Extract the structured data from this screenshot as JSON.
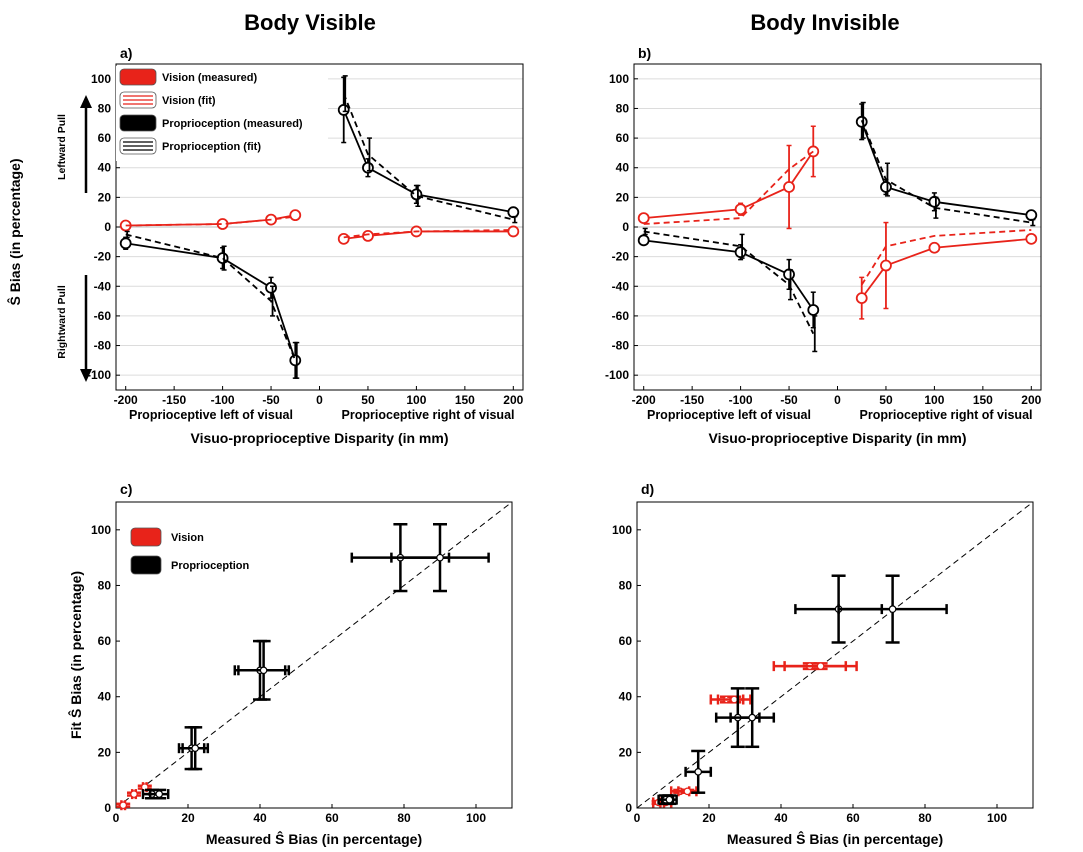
{
  "figure": {
    "title_left": "Body Visible",
    "title_right": "Body Invisible",
    "panel_labels": [
      "a)",
      "b)",
      "c)",
      "d)"
    ],
    "ylabel_top": "Ŝ Bias (in percentage)",
    "xlabel_top": "Visuo-proprioceptive Disparity (in mm)",
    "left_sublabel": "Proprioceptive left of visual",
    "right_sublabel": "Proprioceptive right of visual",
    "leftward_pull": "Leftward Pull",
    "rightward_pull": "Rightward Pull",
    "xlabel_bottom": "Measured Ŝ Bias (in percentage)",
    "ylabel_bottom": "Fit Ŝ Bias (in percentage)",
    "legend_top": [
      "Vision (measured)",
      "Vision (fit)",
      "Proprioception (measured)",
      "Proprioception (fit)"
    ],
    "legend_bottom": [
      "Vision",
      "Proprioception"
    ]
  },
  "colors": {
    "vision": "#e8231a",
    "proprioception": "#000000",
    "grid": "#dcdcdc"
  },
  "chart_data": [
    {
      "type": "line",
      "panel": "a)",
      "xlim": [
        -210,
        210
      ],
      "ylim": [
        -110,
        110
      ],
      "xticks": [
        -200,
        -150,
        -100,
        -50,
        0,
        50,
        100,
        150,
        200
      ],
      "yticks": [
        -100,
        -80,
        -60,
        -40,
        -20,
        0,
        20,
        40,
        60,
        80,
        100
      ],
      "grid": "horizontal",
      "legend_position": "top-left",
      "series": [
        {
          "name": "Vision (measured)",
          "color": "vision",
          "style": "solid",
          "marker": true,
          "segments": [
            {
              "x": [
                -200,
                -100,
                -50,
                -25
              ],
              "y": [
                1,
                2,
                5,
                8
              ],
              "err": [
                2,
                2,
                2,
                3
              ]
            },
            {
              "x": [
                25,
                50,
                100,
                200
              ],
              "y": [
                -8,
                -6,
                -3,
                -3
              ],
              "err": [
                3,
                2,
                2,
                2
              ]
            }
          ]
        },
        {
          "name": "Vision (fit)",
          "color": "vision",
          "style": "dashed",
          "marker": false,
          "segments": [
            {
              "x": [
                -200,
                -100,
                -50,
                -25
              ],
              "y": [
                1,
                2,
                5,
                7
              ]
            },
            {
              "x": [
                25,
                50,
                100,
                200
              ],
              "y": [
                -7,
                -5,
                -3,
                -2
              ]
            }
          ]
        },
        {
          "name": "Proprioception (measured)",
          "color": "proprioception",
          "style": "solid",
          "marker": true,
          "segments": [
            {
              "x": [
                -200,
                -100,
                -50,
                -25
              ],
              "y": [
                -11,
                -21,
                -41,
                -90
              ],
              "err": [
                4,
                7,
                7,
                12
              ]
            },
            {
              "x": [
                25,
                50,
                100,
                200
              ],
              "y": [
                79,
                40,
                22,
                10
              ],
              "err": [
                22,
                6,
                6,
                2
              ]
            }
          ]
        },
        {
          "name": "Proprioception (fit)",
          "color": "proprioception",
          "style": "dashed",
          "marker": false,
          "segments": [
            {
              "x": [
                -200,
                -100,
                -50,
                -25
              ],
              "y": [
                -5,
                -21,
                -50,
                -90
              ],
              "err": [
                2,
                8,
                10,
                12
              ]
            },
            {
              "x": [
                25,
                50,
                100,
                200
              ],
              "y": [
                90,
                49,
                21,
                5
              ],
              "err": [
                12,
                11,
                7,
                2
              ]
            }
          ]
        }
      ]
    },
    {
      "type": "line",
      "panel": "b)",
      "xlim": [
        -210,
        210
      ],
      "ylim": [
        -110,
        110
      ],
      "xticks": [
        -200,
        -150,
        -100,
        -50,
        0,
        50,
        100,
        150,
        200
      ],
      "yticks": [
        -100,
        -80,
        -60,
        -40,
        -20,
        0,
        20,
        40,
        60,
        80,
        100
      ],
      "grid": "horizontal",
      "series": [
        {
          "name": "Vision (measured)",
          "color": "vision",
          "style": "solid",
          "marker": true,
          "segments": [
            {
              "x": [
                -200,
                -100,
                -50,
                -25
              ],
              "y": [
                6,
                12,
                27,
                51
              ],
              "err": [
                3,
                4,
                28,
                17
              ]
            },
            {
              "x": [
                25,
                50,
                100,
                200
              ],
              "y": [
                -48,
                -26,
                -14,
                -8
              ],
              "err": [
                14,
                29,
                3,
                3
              ]
            }
          ]
        },
        {
          "name": "Vision (fit)",
          "color": "vision",
          "style": "dashed",
          "marker": false,
          "segments": [
            {
              "x": [
                -200,
                -100,
                -50,
                -25
              ],
              "y": [
                2,
                6,
                39,
                51
              ]
            },
            {
              "x": [
                25,
                50,
                100,
                200
              ],
              "y": [
                -39,
                -13,
                -6,
                -2
              ]
            }
          ]
        },
        {
          "name": "Proprioception (measured)",
          "color": "proprioception",
          "style": "solid",
          "marker": true,
          "segments": [
            {
              "x": [
                -200,
                -100,
                -50,
                -25
              ],
              "y": [
                -9,
                -17,
                -32,
                -56
              ],
              "err": [
                3,
                5,
                10,
                12
              ]
            },
            {
              "x": [
                25,
                50,
                100,
                200
              ],
              "y": [
                71,
                27,
                17,
                8
              ],
              "err": [
                12,
                5,
                6,
                2
              ]
            }
          ]
        },
        {
          "name": "Proprioception (fit)",
          "color": "proprioception",
          "style": "dashed",
          "marker": false,
          "segments": [
            {
              "x": [
                -200,
                -100,
                -50,
                -25
              ],
              "y": [
                -3,
                -13,
                -39,
                -72
              ],
              "err": [
                2,
                8,
                10,
                12
              ]
            },
            {
              "x": [
                25,
                50,
                100,
                200
              ],
              "y": [
                72,
                32,
                13,
                3
              ],
              "err": [
                12,
                11,
                7,
                2
              ]
            }
          ]
        }
      ]
    },
    {
      "type": "scatter",
      "panel": "c)",
      "xlim": [
        0,
        110
      ],
      "ylim": [
        0,
        110
      ],
      "xticks": [
        0,
        20,
        40,
        60,
        80,
        100
      ],
      "yticks": [
        0,
        20,
        40,
        60,
        80,
        100
      ],
      "grid": false,
      "identity_line": true,
      "legend_position": "top-left",
      "series": [
        {
          "name": "Vision",
          "color": "vision",
          "points": [
            {
              "x": 2,
              "y": 1,
              "xerr": 0.5,
              "yerr": 0.5
            },
            {
              "x": 5,
              "y": 5,
              "xerr": 0.5,
              "yerr": 0.5
            },
            {
              "x": 8,
              "y": 7.5,
              "xerr": 0.5,
              "yerr": 0.5
            }
          ]
        },
        {
          "name": "Proprioception",
          "color": "proprioception",
          "points": [
            {
              "x": 10,
              "y": 5,
              "xerr": 2.5,
              "yerr": 1.5
            },
            {
              "x": 12,
              "y": 5,
              "xerr": 2.5,
              "yerr": 1.5
            },
            {
              "x": 21,
              "y": 21.5,
              "xerr": 3.5,
              "yerr": 7.5
            },
            {
              "x": 22,
              "y": 21.5,
              "xerr": 3.5,
              "yerr": 7.5
            },
            {
              "x": 40,
              "y": 49.5,
              "xerr": 7,
              "yerr": 10.5
            },
            {
              "x": 41,
              "y": 49.5,
              "xerr": 7,
              "yerr": 10.5
            },
            {
              "x": 79,
              "y": 90,
              "xerr": 13.5,
              "yerr": 12
            },
            {
              "x": 90,
              "y": 90,
              "xerr": 13.5,
              "yerr": 12
            }
          ]
        }
      ]
    },
    {
      "type": "scatter",
      "panel": "d)",
      "xlim": [
        0,
        110
      ],
      "ylim": [
        0,
        110
      ],
      "xticks": [
        0,
        20,
        40,
        60,
        80,
        100
      ],
      "yticks": [
        0,
        20,
        40,
        60,
        80,
        100
      ],
      "grid": false,
      "identity_line": true,
      "series": [
        {
          "name": "Vision",
          "color": "vision",
          "points": [
            {
              "x": 6,
              "y": 2,
              "xerr": 1.5,
              "yerr": 0.5
            },
            {
              "x": 8,
              "y": 2,
              "xerr": 1.5,
              "yerr": 0.5
            },
            {
              "x": 12,
              "y": 6,
              "xerr": 2.5,
              "yerr": 0.5
            },
            {
              "x": 14,
              "y": 6,
              "xerr": 2.5,
              "yerr": 0.5
            },
            {
              "x": 25,
              "y": 39,
              "xerr": 4.5,
              "yerr": 1
            },
            {
              "x": 27,
              "y": 39,
              "xerr": 4.5,
              "yerr": 1
            },
            {
              "x": 48,
              "y": 51,
              "xerr": 10,
              "yerr": 1
            },
            {
              "x": 51,
              "y": 51,
              "xerr": 10,
              "yerr": 1
            }
          ]
        },
        {
          "name": "Proprioception",
          "color": "proprioception",
          "points": [
            {
              "x": 8,
              "y": 3,
              "xerr": 2,
              "yerr": 1.5
            },
            {
              "x": 9,
              "y": 3,
              "xerr": 2,
              "yerr": 1.5
            },
            {
              "x": 17,
              "y": 13,
              "xerr": 3.5,
              "yerr": 7.5
            },
            {
              "x": 28,
              "y": 32.5,
              "xerr": 6,
              "yerr": 10.5
            },
            {
              "x": 32,
              "y": 32.5,
              "xerr": 6,
              "yerr": 10.5
            },
            {
              "x": 56,
              "y": 71.5,
              "xerr": 12,
              "yerr": 12
            },
            {
              "x": 71,
              "y": 71.5,
              "xerr": 15,
              "yerr": 12
            }
          ]
        }
      ]
    }
  ]
}
